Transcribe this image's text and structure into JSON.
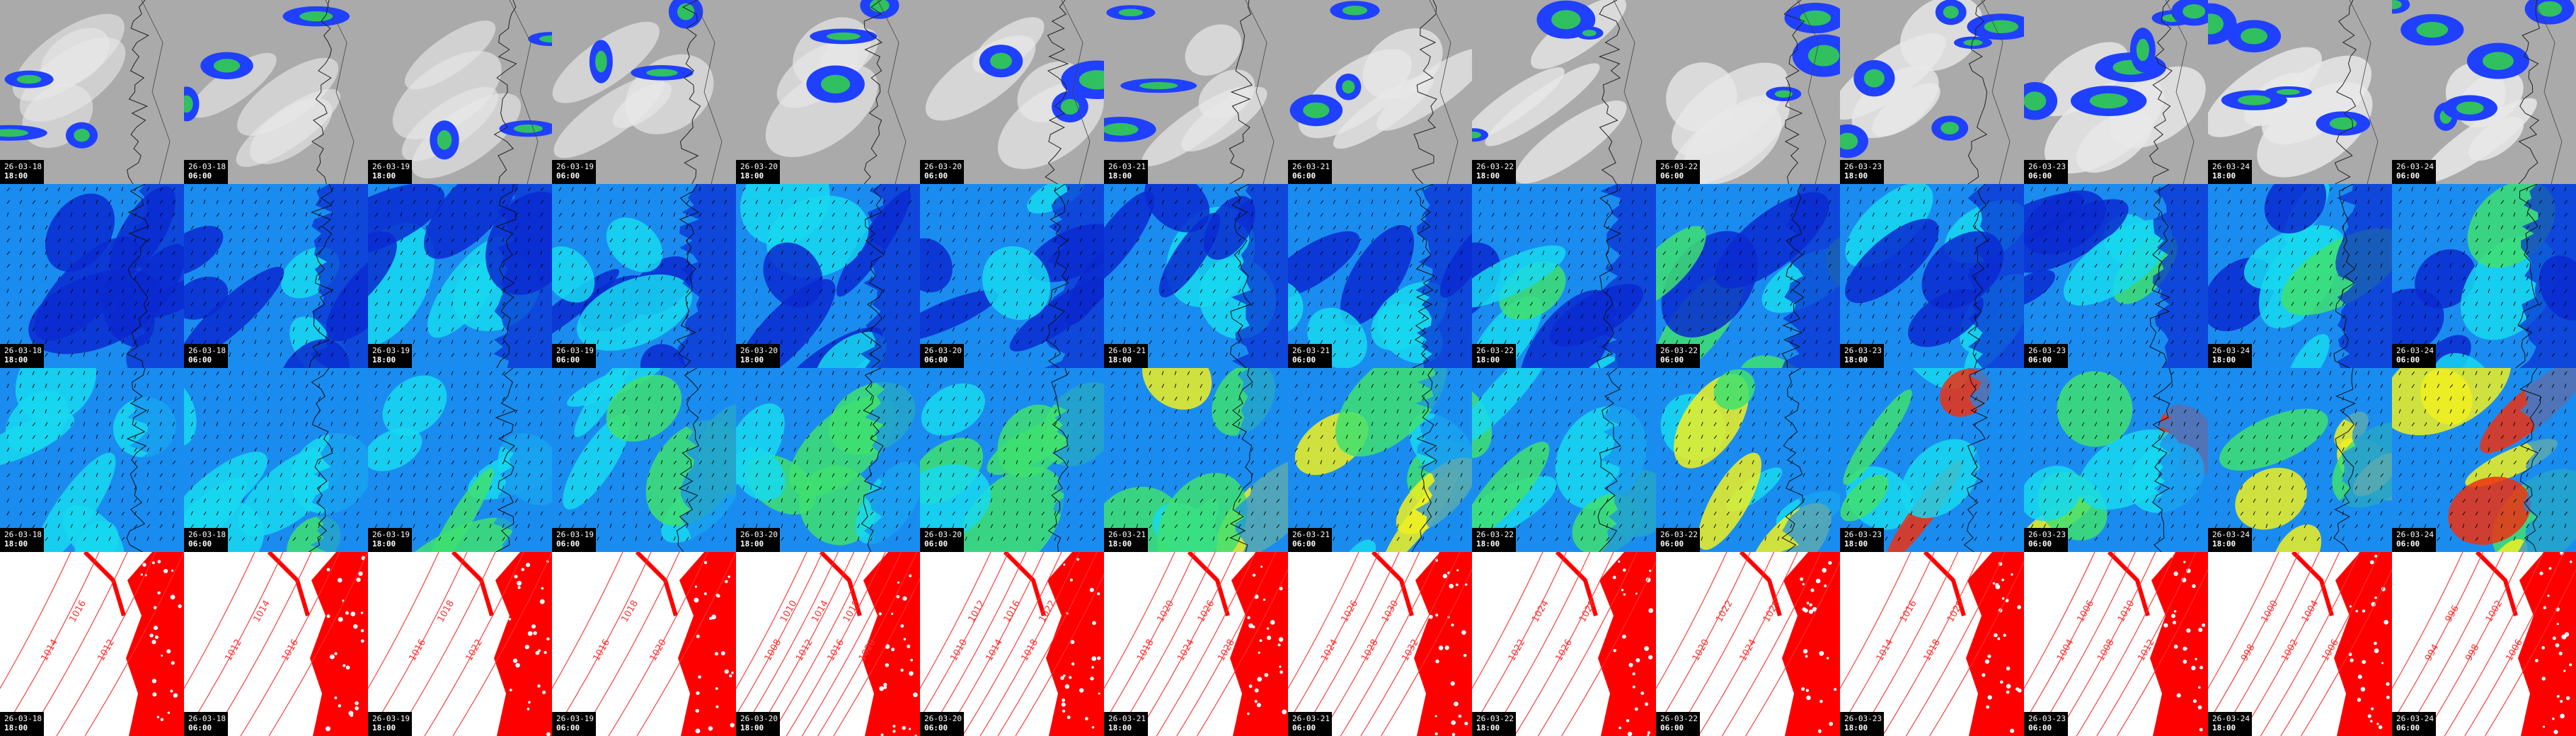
{
  "frames": [
    {
      "date": "26-03-18",
      "time": "18:00"
    },
    {
      "date": "26-03-18",
      "time": "06:00"
    },
    {
      "date": "26-03-19",
      "time": "18:00"
    },
    {
      "date": "26-03-19",
      "time": "06:00"
    },
    {
      "date": "26-03-20",
      "time": "18:00"
    },
    {
      "date": "26-03-20",
      "time": "06:00"
    },
    {
      "date": "26-03-21",
      "time": "18:00"
    },
    {
      "date": "26-03-21",
      "time": "06:00"
    },
    {
      "date": "26-03-22",
      "time": "18:00"
    },
    {
      "date": "26-03-22",
      "time": "06:00"
    },
    {
      "date": "26-03-23",
      "time": "18:00"
    },
    {
      "date": "26-03-23",
      "time": "06:00"
    },
    {
      "date": "26-03-24",
      "time": "18:00"
    },
    {
      "date": "26-03-24",
      "time": "06:00"
    }
  ],
  "rows": [
    {
      "variable": "precipitation-cloud"
    },
    {
      "variable": "wind-low"
    },
    {
      "variable": "wind-high"
    },
    {
      "variable": "pressure"
    }
  ],
  "pressure_labels": [
    [
      "1014",
      "1016",
      "1012"
    ],
    [
      "1012",
      "1014",
      "1016"
    ],
    [
      "1016",
      "1018",
      "1022"
    ],
    [
      "1016",
      "1018",
      "1020"
    ],
    [
      "1008",
      "1010",
      "1012",
      "1014",
      "1016",
      "1018",
      "1020"
    ],
    [
      "1010",
      "1012",
      "1014",
      "1016",
      "1018",
      "1022"
    ],
    [
      "1018",
      "1020",
      "1024",
      "1026",
      "1028"
    ],
    [
      "1024",
      "1026",
      "1028",
      "1030",
      "1032"
    ],
    [
      "1022",
      "1024",
      "1026",
      "1028"
    ],
    [
      "1020",
      "1022",
      "1024",
      "1026"
    ],
    [
      "1014",
      "1016",
      "1018",
      "1020"
    ],
    [
      "1004",
      "1006",
      "1008",
      "1010",
      "1012"
    ],
    [
      "998",
      "1000",
      "1002",
      "1004",
      "1006"
    ],
    [
      "994",
      "996",
      "998",
      "1002",
      "1006"
    ]
  ],
  "colors": {
    "precip_bg": "#aaaaaa",
    "precip_blue": "#2040ff",
    "precip_green": "#30c060",
    "wind_dark": "#0a2ad0",
    "wind_mid": "#1a8cf0",
    "wind_cyan": "#18d8f0",
    "wind_green": "#40e070",
    "wind_yellow": "#f0f020",
    "wind_red": "#f03010",
    "pressure_land": "#ff0000",
    "pressure_line": "#ff3030"
  }
}
